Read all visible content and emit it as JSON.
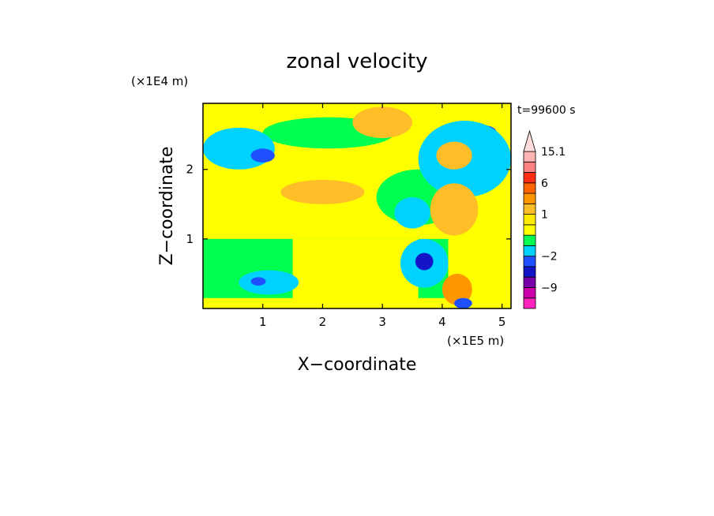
{
  "chart_data": {
    "type": "heatmap",
    "title": "zonal velocity",
    "xlabel": "X−coordinate",
    "ylabel": "Z−coordinate",
    "x_unit": "(×1E5 m)",
    "y_unit": "(×1E4 m)",
    "time_label": "t=99600 s",
    "xlim": [
      0,
      5.15
    ],
    "ylim": [
      0,
      2.95
    ],
    "x_ticks": [
      "1",
      "2",
      "3",
      "4",
      "5"
    ],
    "x_tick_values": [
      1,
      2,
      3,
      4,
      5
    ],
    "y_ticks": [
      "1",
      "2"
    ],
    "y_tick_values": [
      1,
      2
    ],
    "colorbar": {
      "labels": [
        "15.1",
        "6",
        "1",
        "−2",
        "−9"
      ],
      "label_values": [
        15.1,
        6,
        1,
        -2,
        -9
      ],
      "levels": [
        {
          "lo": -15,
          "hi": -12,
          "color": "#ff22bb"
        },
        {
          "lo": -12,
          "hi": -9,
          "color": "#cc00aa"
        },
        {
          "lo": -9,
          "hi": -6,
          "color": "#7700aa"
        },
        {
          "lo": -6,
          "hi": -4,
          "color": "#1414c8"
        },
        {
          "lo": -4,
          "hi": -2,
          "color": "#1e50ff"
        },
        {
          "lo": -2,
          "hi": -1,
          "color": "#00d2ff"
        },
        {
          "lo": -1,
          "hi": 0,
          "color": "#00ff50"
        },
        {
          "lo": 0,
          "hi": 0.5,
          "color": "#ffff00"
        },
        {
          "lo": 0.5,
          "hi": 1,
          "color": "#ffea00"
        },
        {
          "lo": 1,
          "hi": 2,
          "color": "#ffbe28"
        },
        {
          "lo": 2,
          "hi": 4,
          "color": "#ff9600"
        },
        {
          "lo": 4,
          "hi": 6,
          "color": "#ff6400"
        },
        {
          "lo": 6,
          "hi": 9,
          "color": "#ff2d14"
        },
        {
          "lo": 9,
          "hi": 12,
          "color": "#ff8282"
        },
        {
          "lo": 12,
          "hi": 15.1,
          "color": "#ffb4b4"
        },
        {
          "lo": 15.1,
          "hi": 20,
          "color": "#ffdcdc"
        }
      ]
    },
    "field_features": [
      {
        "kind": "band",
        "value": 0.4,
        "x": [
          0,
          5.15
        ],
        "z": [
          1.05,
          2.95
        ]
      },
      {
        "kind": "band",
        "value": -0.5,
        "x": [
          0,
          4.1
        ],
        "z": [
          0.15,
          1.0
        ]
      },
      {
        "kind": "band",
        "value": 0.3,
        "x": [
          1.5,
          3.6
        ],
        "z": [
          0.1,
          1.0
        ]
      },
      {
        "kind": "blob",
        "value": -0.6,
        "x": [
          1.0,
          3.2
        ],
        "z": [
          2.3,
          2.75
        ]
      },
      {
        "kind": "blob",
        "value": -1.5,
        "x": [
          0,
          1.2
        ],
        "z": [
          2.0,
          2.6
        ]
      },
      {
        "kind": "blob",
        "value": -3.5,
        "x": [
          0.8,
          1.2
        ],
        "z": [
          2.1,
          2.3
        ]
      },
      {
        "kind": "blob",
        "value": -1.5,
        "x": [
          0.6,
          1.6
        ],
        "z": [
          0.2,
          0.55
        ]
      },
      {
        "kind": "blob",
        "value": -3.5,
        "x": [
          0.8,
          1.05
        ],
        "z": [
          0.33,
          0.45
        ]
      },
      {
        "kind": "blob",
        "value": -0.6,
        "x": [
          2.9,
          4.3
        ],
        "z": [
          1.2,
          2.0
        ]
      },
      {
        "kind": "blob",
        "value": -1.5,
        "x": [
          3.2,
          3.8
        ],
        "z": [
          1.15,
          1.6
        ]
      },
      {
        "kind": "blob",
        "value": -1.5,
        "x": [
          3.3,
          4.1
        ],
        "z": [
          0.3,
          1.0
        ]
      },
      {
        "kind": "blob",
        "value": -4.5,
        "x": [
          3.55,
          3.85
        ],
        "z": [
          0.55,
          0.8
        ]
      },
      {
        "kind": "blob",
        "value": -3.5,
        "x": [
          4.2,
          4.9
        ],
        "z": [
          2.45,
          2.65
        ]
      },
      {
        "kind": "blob",
        "value": -1.5,
        "x": [
          3.6,
          5.15
        ],
        "z": [
          1.6,
          2.7
        ]
      },
      {
        "kind": "blob",
        "value": 1.3,
        "x": [
          3.8,
          4.6
        ],
        "z": [
          1.05,
          1.8
        ]
      },
      {
        "kind": "blob",
        "value": 1.3,
        "x": [
          1.3,
          2.7
        ],
        "z": [
          1.5,
          1.85
        ]
      },
      {
        "kind": "blob",
        "value": 1.3,
        "x": [
          2.5,
          3.5
        ],
        "z": [
          2.45,
          2.9
        ]
      },
      {
        "kind": "blob",
        "value": 1.3,
        "x": [
          3.9,
          4.5
        ],
        "z": [
          2.0,
          2.4
        ]
      },
      {
        "kind": "blob",
        "value": 2.5,
        "x": [
          4.0,
          4.5
        ],
        "z": [
          0.05,
          0.5
        ]
      },
      {
        "kind": "blob",
        "value": -2.5,
        "x": [
          4.2,
          4.5
        ],
        "z": [
          0.0,
          0.15
        ]
      }
    ]
  }
}
